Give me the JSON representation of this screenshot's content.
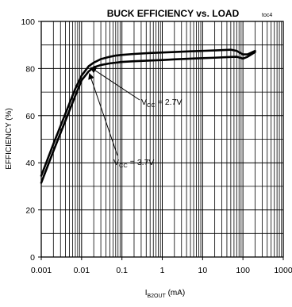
{
  "chart_data": {
    "type": "line",
    "title": "BUCK EFFICIENCY vs. LOAD",
    "tag": "toc4",
    "xlabel": {
      "main": "I",
      "sub": "B2OUT",
      "unit": " (mA)"
    },
    "ylabel": "EFFICIENCY (%)",
    "xscale": "log",
    "xlim": [
      0.001,
      1000
    ],
    "ylim": [
      0,
      100
    ],
    "x_ticks": [
      {
        "value": 0.001,
        "label": "0.001"
      },
      {
        "value": 0.01,
        "label": "0.01"
      },
      {
        "value": 0.1,
        "label": "0.1"
      },
      {
        "value": 1,
        "label": "1"
      },
      {
        "value": 10,
        "label": "10"
      },
      {
        "value": 100,
        "label": "100"
      },
      {
        "value": 1000,
        "label": "1000"
      }
    ],
    "y_ticks": [
      {
        "value": 0,
        "label": "0"
      },
      {
        "value": 20,
        "label": "20"
      },
      {
        "value": 40,
        "label": "40"
      },
      {
        "value": 60,
        "label": "60"
      },
      {
        "value": 80,
        "label": "80"
      },
      {
        "value": 100,
        "label": "100"
      }
    ],
    "grid": true,
    "series": [
      {
        "label_main": "V",
        "label_sub": "CC",
        "label_tail": " = 2.7V",
        "x": [
          0.001,
          0.002,
          0.004,
          0.007,
          0.01,
          0.015,
          0.02,
          0.03,
          0.05,
          0.07,
          0.1,
          0.2,
          0.5,
          1,
          2,
          5,
          10,
          20,
          50,
          70,
          100,
          130,
          200
        ],
        "y": [
          34.5,
          48,
          61,
          71.5,
          77,
          81,
          82.5,
          84,
          85,
          85.5,
          85.8,
          86.2,
          86.6,
          86.8,
          87,
          87.3,
          87.5,
          87.7,
          88,
          87.5,
          86,
          86,
          87.5
        ]
      },
      {
        "label_main": "V",
        "label_sub": "CC",
        "label_tail": " = 3.7V",
        "x": [
          0.001,
          0.002,
          0.004,
          0.007,
          0.01,
          0.015,
          0.02,
          0.03,
          0.05,
          0.07,
          0.1,
          0.2,
          0.5,
          1,
          2,
          5,
          10,
          20,
          50,
          70,
          100,
          130,
          200
        ],
        "y": [
          31.5,
          45,
          58,
          68.5,
          75,
          78.8,
          80.5,
          81.5,
          82.2,
          82.5,
          82.8,
          83.1,
          83.4,
          83.6,
          83.9,
          84.2,
          84.4,
          84.6,
          84.9,
          85,
          84.2,
          85,
          87
        ]
      }
    ]
  }
}
